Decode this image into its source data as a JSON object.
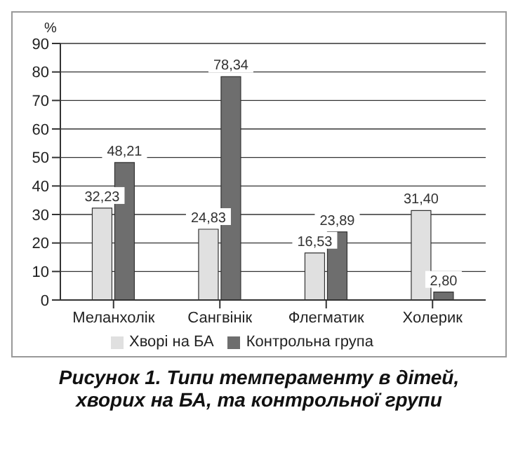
{
  "chart_data": {
    "type": "bar",
    "title": "Рисунок 1. Типи темпераменту в дітей, хворих на БА, та контрольної групи",
    "ylabel": "%",
    "categories": [
      "Меланхолік",
      "Сангвінік",
      "Флегматик",
      "Холерик"
    ],
    "series": [
      {
        "name": "Хворі на БА",
        "color": "#e0e0e0",
        "values": [
          32.23,
          24.83,
          16.53,
          31.4
        ],
        "value_labels": [
          "32,23",
          "24,83",
          "16,53",
          "31,40"
        ]
      },
      {
        "name": "Контрольна група",
        "color": "#6e6e6e",
        "values": [
          48.21,
          78.34,
          23.89,
          2.8
        ],
        "value_labels": [
          "48,21",
          "78,34",
          "23,89",
          "2,80"
        ]
      }
    ],
    "ylim": [
      0,
      90
    ],
    "yticks": [
      0,
      10,
      20,
      30,
      40,
      50,
      60,
      70,
      80,
      90
    ],
    "grid": "y",
    "legend": "bottom"
  }
}
